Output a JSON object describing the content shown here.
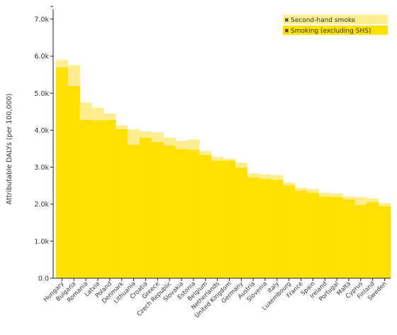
{
  "chart_data": {
    "type": "bar",
    "stacked": true,
    "ylabel": "Attributable DALYs (per 100,000)",
    "ylim": [
      0,
      7000
    ],
    "yticks": [
      0,
      1000,
      2000,
      3000,
      4000,
      5000,
      6000,
      7000
    ],
    "ytick_labels": [
      "0.0",
      "1.0k",
      "2.0k",
      "3.0k",
      "4.0k",
      "5.0k",
      "6.0k",
      "7.0k"
    ],
    "grid": false,
    "legend_position": "top-right",
    "categories": [
      "Hungary",
      "Bulgaria",
      "Romania",
      "Latvia",
      "Poland",
      "Denmark",
      "Lithuania",
      "Croatia",
      "Greece",
      "Czech Republic",
      "Slovakia",
      "Estonia",
      "Belgium",
      "Netherlands",
      "United Kingdom",
      "Germany",
      "Austria",
      "Slovenia",
      "Italy",
      "Luxembourg",
      "France",
      "Spain",
      "Ireland",
      "Portugal",
      "Malta",
      "Cyprus",
      "Finland",
      "Sweden"
    ],
    "series": [
      {
        "name": "Smoking (excluding SHS)",
        "color": "#FFE000",
        "values": [
          5700,
          5200,
          4280,
          4270,
          4280,
          4030,
          3610,
          3800,
          3680,
          3590,
          3490,
          3470,
          3330,
          3180,
          3180,
          2990,
          2730,
          2690,
          2660,
          2510,
          2370,
          2310,
          2210,
          2200,
          2130,
          1980,
          2060,
          1950
        ]
      },
      {
        "name": "Second-hand smoke",
        "color": "#FFEE90",
        "values": [
          200,
          560,
          470,
          340,
          170,
          100,
          410,
          170,
          260,
          210,
          220,
          280,
          110,
          100,
          50,
          140,
          110,
          120,
          120,
          80,
          70,
          100,
          100,
          90,
          80,
          210,
          100,
          80
        ]
      }
    ]
  }
}
